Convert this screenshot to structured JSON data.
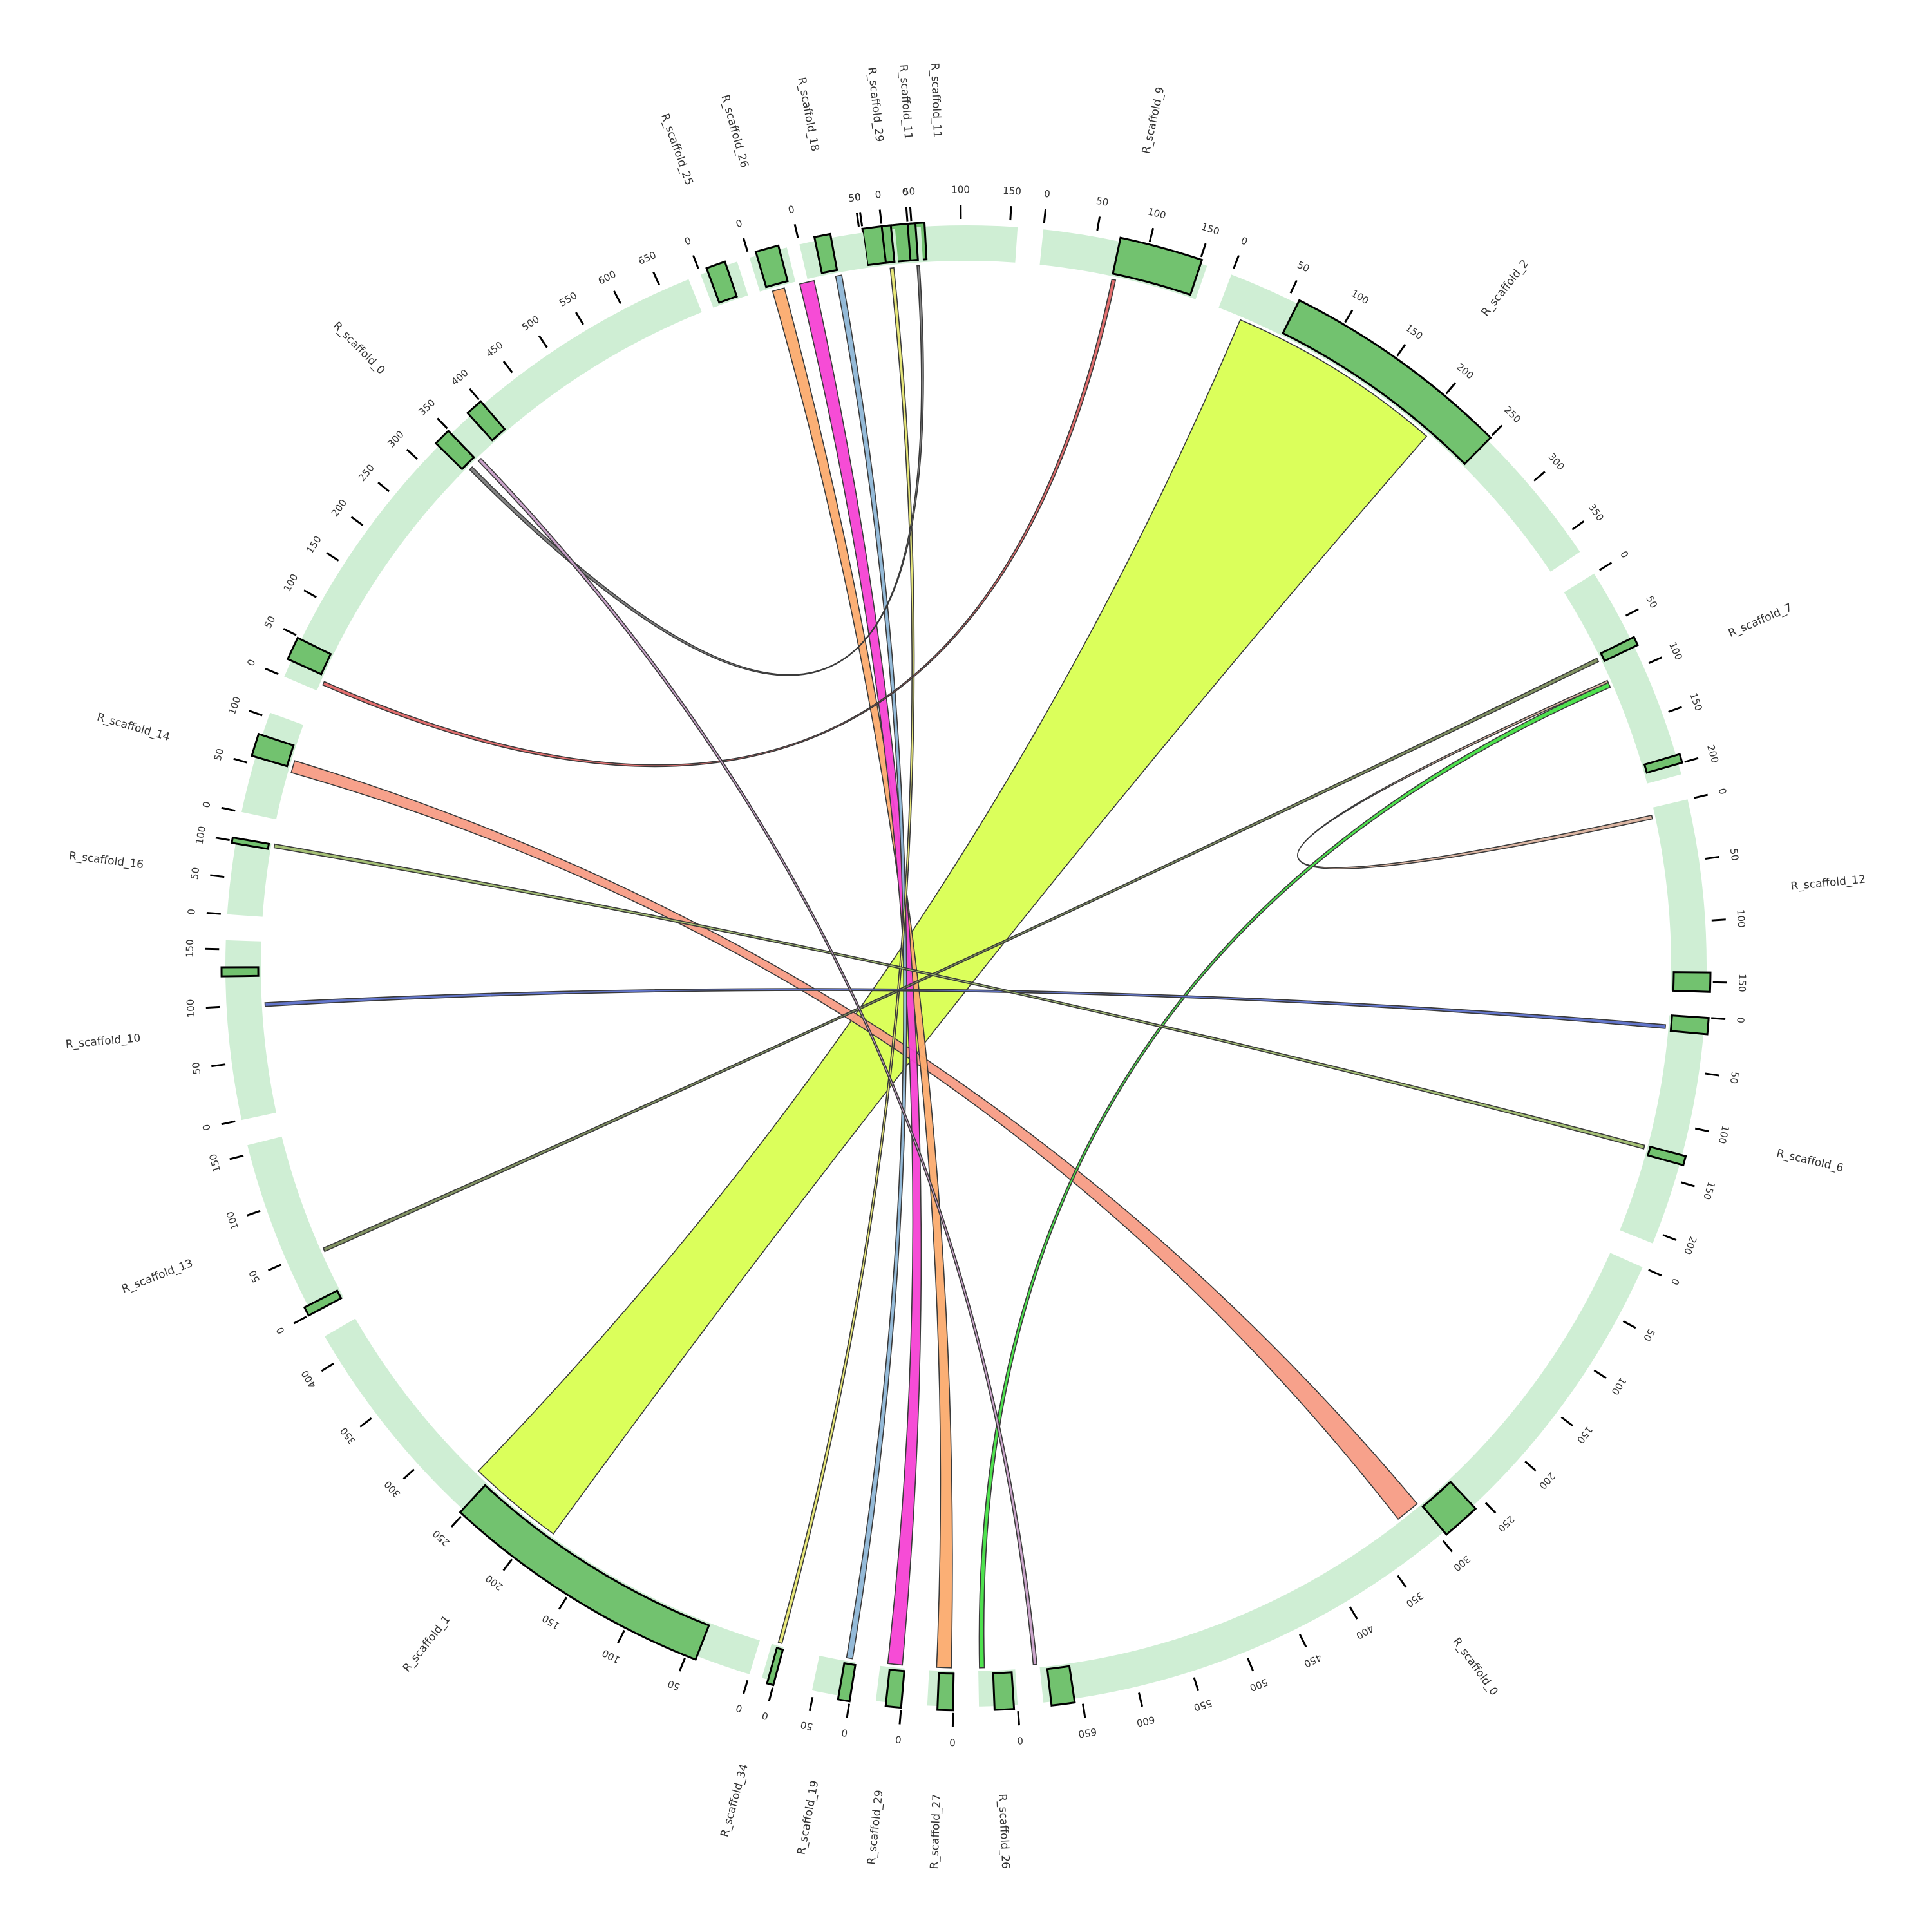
{
  "diagram": {
    "type": "circos",
    "colors": {
      "segment_bg": "#cfeed4",
      "highlight": "#72c26f",
      "tick": "#000000",
      "link_outline": "#3a3a3a"
    },
    "segments": [
      {
        "label": "R_scaffold_11",
        "start": 352,
        "end": 364,
        "ticks": [
          "0",
          "50",
          "100",
          "150"
        ],
        "hl": [
          {
            "f": 0.0,
            "w": 0.4
          }
        ]
      },
      {
        "label": "R_scaffold_9",
        "start": 366,
        "end": 379,
        "ticks": [
          "0",
          "50",
          "100",
          "150"
        ],
        "hl": [
          {
            "f": 0.46,
            "w": 0.5
          }
        ]
      },
      {
        "label": "R_scaffold_2",
        "start": 381,
        "end": 416,
        "ticks": [
          "0",
          "50",
          "100",
          "150",
          "200",
          "250",
          "300",
          "350"
        ],
        "hl": [
          {
            "f": 0.16,
            "w": 0.52
          }
        ]
      },
      {
        "label": "R_scaffold_7",
        "start": 418,
        "end": 435,
        "ticks": [
          "0",
          "50",
          "100",
          "150",
          "200"
        ],
        "hl": [
          {
            "f": 0.34,
            "w": 0.04
          },
          {
            "f": 0.91,
            "w": 0.04
          }
        ]
      },
      {
        "label": "R_scaffold_12",
        "start": 437,
        "end": 452,
        "ticks": [
          "0",
          "50",
          "100",
          "150"
        ],
        "hl": [
          {
            "f": 0.9,
            "w": 0.1
          }
        ]
      },
      {
        "label": "R_scaffold_6",
        "start": 454,
        "end": 472,
        "ticks": [
          "0",
          "50",
          "100",
          "150",
          "200"
        ],
        "hl": [
          {
            "f": 0.0,
            "w": 0.07
          },
          {
            "f": 0.6,
            "w": 0.04
          }
        ]
      },
      {
        "label": "R_scaffold_0",
        "start": 474,
        "end": 534,
        "ticks": [
          "0",
          "50",
          "100",
          "150",
          "200",
          "250",
          "300",
          "350",
          "400",
          "450",
          "500",
          "550",
          "600",
          "650"
        ],
        "hl": [
          {
            "f": 0.38,
            "w": 0.05
          },
          {
            "f": 0.96,
            "w": 0.03
          }
        ]
      },
      {
        "label": "R_scaffold_26",
        "start": 536,
        "end": 539,
        "ticks": [
          "0"
        ],
        "hl": [
          {
            "f": 0.1,
            "w": 0.5
          }
        ]
      },
      {
        "label": "R_scaffold_27",
        "start": 541,
        "end": 543,
        "ticks": [
          "0"
        ],
        "hl": [
          {
            "f": 0.0,
            "w": 0.6
          }
        ]
      },
      {
        "label": "R_scaffold_29",
        "start": 545,
        "end": 547,
        "ticks": [
          "0"
        ],
        "hl": [
          {
            "f": 0.0,
            "w": 0.6
          }
        ]
      },
      {
        "label": "R_scaffold_19",
        "start": 549,
        "end": 552,
        "ticks": [
          "0",
          "50"
        ],
        "hl": [
          {
            "f": 0.0,
            "w": 0.3
          }
        ]
      },
      {
        "label": "R_scaffold_34",
        "start": 555,
        "end": 556,
        "ticks": [
          "0"
        ],
        "hl": [
          {
            "f": 0.0,
            "w": 0.5
          }
        ]
      },
      {
        "label": "R_scaffold_1",
        "start": 557,
        "end": 600,
        "ticks": [
          "0",
          "50",
          "100",
          "150",
          "200",
          "250",
          "300",
          "350",
          "400"
        ],
        "hl": [
          {
            "f": 0.1,
            "w": 0.5
          }
        ]
      },
      {
        "label": "R_scaffold_13",
        "start": 602,
        "end": 616,
        "ticks": [
          "0",
          "50",
          "100",
          "150"
        ],
        "hl": [
          {
            "f": 0.0,
            "w": 0.05
          }
        ]
      },
      {
        "label": "R_scaffold_10",
        "start": 618,
        "end": 632,
        "ticks": [
          "0",
          "50",
          "100",
          "150"
        ],
        "hl": [
          {
            "f": 0.8,
            "w": 0.05
          }
        ]
      },
      {
        "label": "R_scaffold_16",
        "start": 634,
        "end": 640,
        "ticks": [
          "0",
          "50",
          "100"
        ],
        "hl": [
          {
            "f": 0.92,
            "w": 0.07
          }
        ]
      },
      {
        "label": "R_scaffold_14",
        "start": 642,
        "end": 650,
        "ticks": [
          "0",
          "50",
          "100"
        ],
        "hl": [
          {
            "f": 0.55,
            "w": 0.22
          }
        ]
      },
      {
        "label": "R_scaffold_0",
        "start": 653,
        "end": 698,
        "ticks": [
          "0",
          "50",
          "100",
          "150",
          "200",
          "250",
          "300",
          "350",
          "400",
          "450",
          "500",
          "550",
          "600",
          "650"
        ],
        "hl": [
          {
            "f": 0.03,
            "w": 0.04
          },
          {
            "f": 0.48,
            "w": 0.03
          },
          {
            "f": 0.555,
            "w": 0.03
          }
        ]
      },
      {
        "label": "R_scaffold_25",
        "start": 699,
        "end": 702,
        "ticks": [
          "0"
        ],
        "hl": [
          {
            "f": 0.2,
            "w": 0.5
          }
        ]
      },
      {
        "label": "R_scaffold_26",
        "start": 703,
        "end": 706,
        "ticks": [
          "0"
        ],
        "hl": [
          {
            "f": 0.2,
            "w": 0.6
          }
        ]
      },
      {
        "label": "R_scaffold_18",
        "start": 707,
        "end": 712,
        "ticks": [
          "0",
          "50"
        ],
        "hl": [
          {
            "f": 0.25,
            "w": 0.25
          }
        ]
      },
      {
        "label": "R_scaffold_29",
        "start": 713.5,
        "end": 714.5,
        "ticks": [
          "0"
        ],
        "hl": [
          {
            "f": 0.0,
            "w": 0.7
          }
        ]
      },
      {
        "label": "R_scaffold_11",
        "start": 715.5,
        "end": 716.5,
        "ticks": [
          "0"
        ],
        "hl": [
          {
            "f": 0.0,
            "w": 0.6
          }
        ]
      }
    ],
    "links": [
      {
        "a0": 383,
        "a1": 401,
        "b0": 576,
        "b1": 584,
        "color": "#d9ff52"
      },
      {
        "a0": 500,
        "a1": 502,
        "b0": 646,
        "b1": 647,
        "color": "#f79c85"
      },
      {
        "a0": 704,
        "a1": 705,
        "b0": 541.2,
        "b1": 542.4,
        "color": "#fbab6e"
      },
      {
        "a0": 706.3,
        "a1": 707.5,
        "b0": 545.2,
        "b1": 546.4,
        "color": "#f542d4"
      },
      {
        "a0": 709.3,
        "a1": 709.8,
        "b0": 549.3,
        "b1": 549.8,
        "color": "#8eb6d6"
      },
      {
        "a0": 713.8,
        "a1": 714.1,
        "b0": 555.2,
        "b1": 555.5,
        "color": "#e6e672"
      },
      {
        "a0": 716,
        "a1": 716.2,
        "b0": 675,
        "b1": 675.3,
        "color": "#7a7a7a"
      },
      {
        "a0": 426,
        "a1": 426.2,
        "b0": 437.6,
        "b1": 437.9,
        "color": "#d9b09c"
      },
      {
        "a0": 426.2,
        "a1": 426.6,
        "b0": 538.5,
        "b1": 538.9,
        "color": "#44e044"
      },
      {
        "a0": 424,
        "a1": 424.3,
        "b0": 606,
        "b1": 606.3,
        "color": "#7a8c5a"
      },
      {
        "a0": 454.8,
        "a1": 455.1,
        "b0": 626.7,
        "b1": 627,
        "color": "#5a6ec8"
      },
      {
        "a0": 464.8,
        "a1": 465.1,
        "b0": 639.7,
        "b1": 640,
        "color": "#a0bd6e"
      },
      {
        "a0": 372,
        "a1": 372.3,
        "b0": 653.6,
        "b1": 653.9,
        "color": "#e06666"
      },
      {
        "a0": 676,
        "a1": 676.3,
        "b0": 534.2,
        "b1": 534.5,
        "color": "#c8a0c8"
      }
    ]
  }
}
